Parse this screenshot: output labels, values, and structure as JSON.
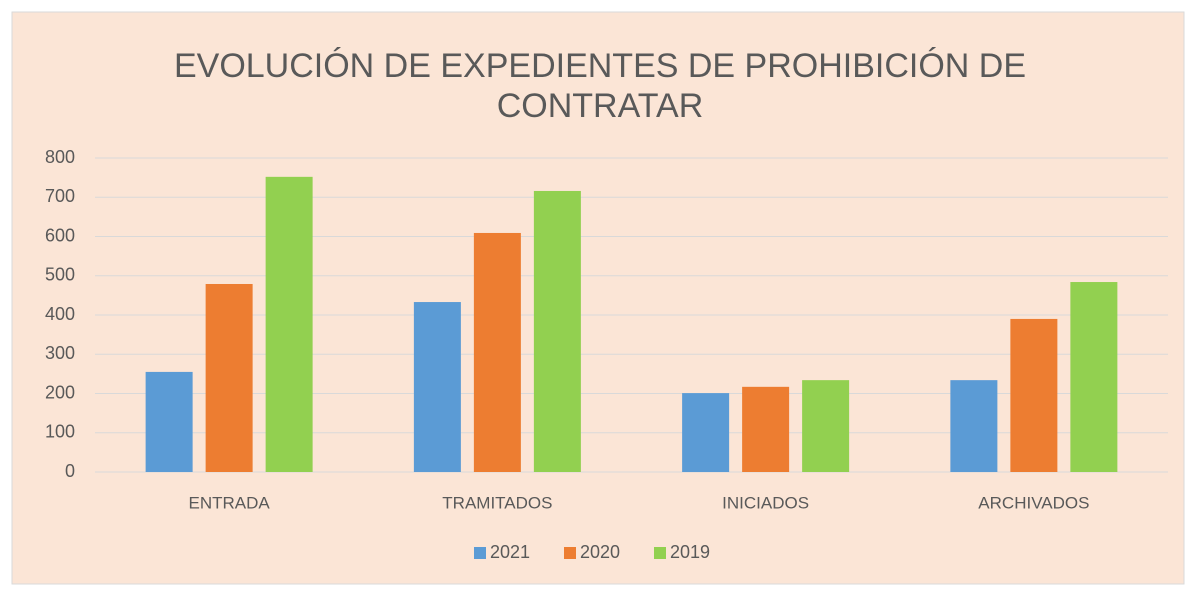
{
  "chart_data": {
    "type": "bar",
    "title": "EVOLUCIÓN DE EXPEDIENTES DE PROHIBICIÓN DE CONTRATAR",
    "categories": [
      "ENTRADA",
      "TRAMITADOS",
      "INICIADOS",
      "ARCHIVADOS"
    ],
    "series": [
      {
        "name": "2021",
        "color": "#5b9bd5",
        "values": [
          255,
          433,
          201,
          234
        ]
      },
      {
        "name": "2020",
        "color": "#ed7d31",
        "values": [
          479,
          609,
          217,
          390
        ]
      },
      {
        "name": "2019",
        "color": "#92d050",
        "values": [
          752,
          716,
          234,
          484
        ]
      }
    ],
    "ylim": [
      0,
      800
    ],
    "yticks": [
      0,
      100,
      200,
      300,
      400,
      500,
      600,
      700,
      800
    ],
    "grid": true,
    "legend": "bottom"
  }
}
